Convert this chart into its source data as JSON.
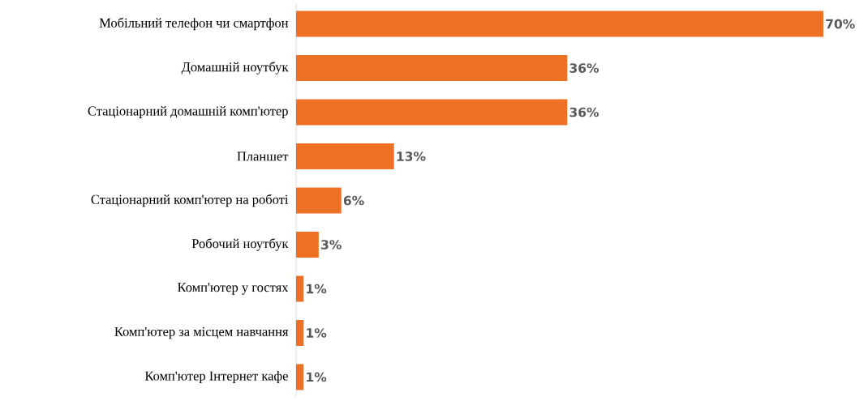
{
  "chart_data": {
    "type": "bar",
    "orientation": "horizontal",
    "categories": [
      "Мобільний телефон чи смартфон",
      "Домашній ноутбук",
      "Стаціонарний домашній комп'ютер",
      "Планшет",
      "Стаціонарний комп'ютер на роботі",
      "Робочий ноутбук",
      "Комп'ютер у гостях",
      "Комп'ютер за місцем навчання",
      "Комп'ютер Інтернет кафе"
    ],
    "values": [
      70,
      36,
      36,
      13,
      6,
      3,
      1,
      1,
      1
    ],
    "value_labels": [
      "70%",
      "36%",
      "36%",
      "13%",
      "6%",
      "3%",
      "1%",
      "1%",
      "1%"
    ],
    "color": "#ed7024",
    "tick_labels": "y"
  }
}
